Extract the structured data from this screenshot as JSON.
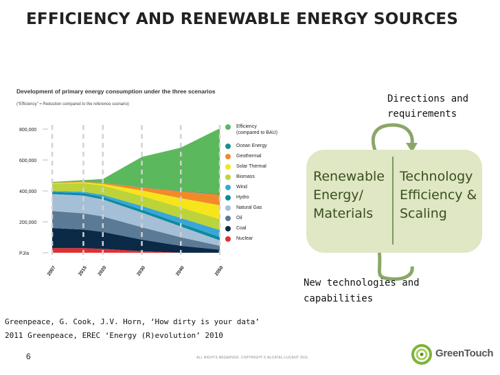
{
  "slide": {
    "title": "EFFICIENCY AND RENEWABLE ENERGY SOURCES",
    "page_number": "6",
    "copyright": "ALL RIGHTS RESERVED. COPYRIGHT © ALCATEL-LUCENT 2011.",
    "logo_text": "GreenTouch",
    "citation_line1": "Greenpeace, G. Cook, J.V. Horn, ‘How dirty is your data’",
    "citation_line2": "2011 Greenpeace, EREC ‘Energy (R)evolution’ 2010"
  },
  "diagram": {
    "directions": "Directions and requirements",
    "new_tech": "New technologies and capabilities",
    "left_box": "Renewable\nEnergy/\nMaterials",
    "right_box": "Technology\nEfficiency &\nScaling",
    "box_color": "#dfe7c4",
    "text_color": "#3a4e1d",
    "arrow_color": "#8aa768"
  },
  "chart_data": {
    "type": "area",
    "title": "Development of primary energy consumption under the three scenarios",
    "subtitle": "(“Efficiency” = Reduction compared to the reference scenario)",
    "x": [
      2007,
      2015,
      2020,
      2030,
      2040,
      2050
    ],
    "x_tick_labels": [
      "2007",
      "2015",
      "2020",
      "2030",
      "2040",
      "2050"
    ],
    "y_ticks": [
      0,
      200000,
      400000,
      600000,
      800000
    ],
    "y_tick_labels": [
      "PJ/a",
      "200,000",
      "400,000",
      "600,000",
      "800,000"
    ],
    "ylim": [
      0,
      800000
    ],
    "grid": "vertical dashed",
    "legend_position": "right",
    "series": [
      {
        "name": "Nuclear",
        "color": "#e03131",
        "values": [
          30000,
          30000,
          25000,
          10000,
          0,
          0
        ]
      },
      {
        "name": "Coal",
        "color": "#0a2a48",
        "values": [
          130000,
          120000,
          110000,
          75000,
          45000,
          20000
        ]
      },
      {
        "name": "Oil",
        "color": "#5a7a96",
        "values": [
          110000,
          105000,
          100000,
          80000,
          55000,
          25000
        ]
      },
      {
        "name": "Natural Gas",
        "color": "#a5bfd6",
        "values": [
          110000,
          115000,
          110000,
          95000,
          70000,
          35000
        ]
      },
      {
        "name": "Hydro",
        "color": "#0d8aa0",
        "values": [
          14000,
          15000,
          16000,
          18000,
          20000,
          22000
        ]
      },
      {
        "name": "Wind",
        "color": "#3aa6d8",
        "values": [
          6000,
          10000,
          14000,
          25000,
          35000,
          45000
        ]
      },
      {
        "name": "Biomass",
        "color": "#bcd43a",
        "values": [
          48000,
          55000,
          60000,
          65000,
          68000,
          70000
        ]
      },
      {
        "name": "Solar Thermal",
        "color": "#f6e51b",
        "values": [
          3000,
          6000,
          10000,
          35000,
          60000,
          90000
        ]
      },
      {
        "name": "Geothermal",
        "color": "#f28a2a",
        "values": [
          2000,
          4000,
          6000,
          20000,
          45000,
          70000
        ]
      },
      {
        "name": "Ocean Energy",
        "color": "#1d8f8f",
        "values": [
          0,
          0,
          1000,
          2000,
          3000,
          4000
        ]
      },
      {
        "name": "Efficiency\n(compared to BAU)",
        "color": "#5cb85c",
        "values": [
          5000,
          10000,
          25000,
          195000,
          279000,
          424000
        ]
      }
    ]
  }
}
